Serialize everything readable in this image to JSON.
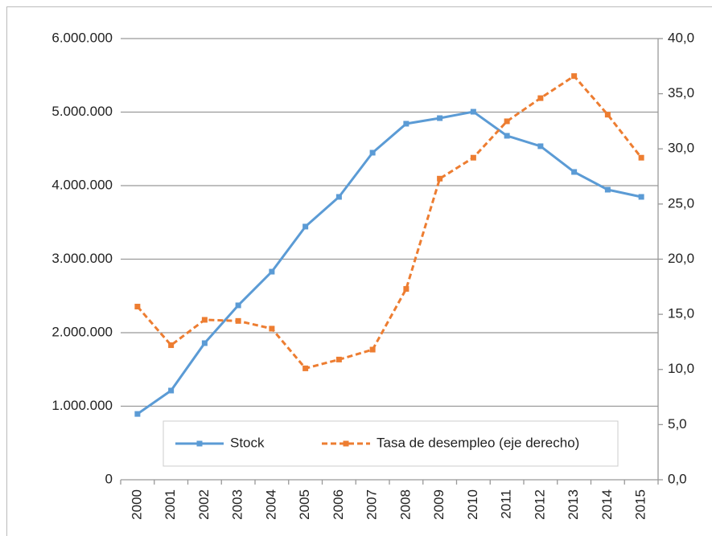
{
  "chart_data": {
    "type": "line",
    "categories": [
      "2000",
      "2001",
      "2002",
      "2003",
      "2004",
      "2005",
      "2006",
      "2007",
      "2008",
      "2009",
      "2010",
      "2011",
      "2012",
      "2013",
      "2014",
      "2015"
    ],
    "series": [
      {
        "name": "Stock",
        "color": "#5b9bd5",
        "values": [
          895000,
          1213000,
          1858000,
          2372000,
          2830000,
          3443000,
          3847000,
          4448000,
          4842000,
          4918000,
          5005000,
          4678000,
          4536000,
          4186000,
          3945000,
          3847000
        ]
      },
      {
        "name": "Tasa de desempleo (eje derecho)",
        "color": "#ed7d31",
        "axis": "y2",
        "dashed": true,
        "values": [
          15.7,
          12.2,
          14.5,
          14.4,
          13.7,
          10.1,
          10.9,
          11.8,
          17.3,
          27.3,
          29.2,
          32.5,
          34.6,
          36.6,
          33.1,
          29.2
        ]
      }
    ],
    "ylim": [
      0,
      6000000
    ],
    "yticks": [
      0,
      {
        "value": 1000000,
        "label": "1.000.000"
      },
      {
        "value": 2000000,
        "label": "2.000.000"
      },
      {
        "value": 3000000,
        "label": "3.000.000"
      },
      {
        "value": 4000000,
        "label": "4.000.000"
      },
      {
        "value": 5000000,
        "label": "5.000.000"
      },
      {
        "value": 6000000,
        "label": "6.000.000"
      }
    ],
    "y2lim": [
      0,
      40
    ],
    "y2ticks": [
      {
        "value": 0,
        "label": "0,0"
      },
      {
        "value": 5,
        "label": "5,0"
      },
      {
        "value": 10,
        "label": "10,0"
      },
      {
        "value": 15,
        "label": "15,0"
      },
      {
        "value": 20,
        "label": "20,0"
      },
      {
        "value": 25,
        "label": "25,0"
      },
      {
        "value": 30,
        "label": "30,0"
      },
      {
        "value": 35,
        "label": "35,0"
      },
      {
        "value": 40,
        "label": "40,0"
      }
    ],
    "grid": true,
    "legend": "bottom"
  }
}
